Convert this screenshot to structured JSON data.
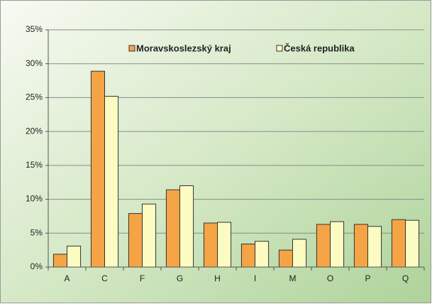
{
  "chart_data": {
    "type": "bar",
    "categories": [
      "A",
      "C",
      "F",
      "G",
      "H",
      "I",
      "M",
      "O",
      "P",
      "Q"
    ],
    "series": [
      {
        "name": "Moravskoslezský kraj",
        "color": "#f5a445",
        "values": [
          1.9,
          28.9,
          7.9,
          11.4,
          6.5,
          3.4,
          2.5,
          6.3,
          6.3,
          7.0
        ]
      },
      {
        "name": "Česká republika",
        "color": "#fbfbc2",
        "values": [
          3.1,
          25.2,
          9.3,
          12.0,
          6.6,
          3.8,
          4.1,
          6.7,
          6.0,
          6.9
        ]
      }
    ],
    "ylim": [
      0,
      35
    ],
    "yticks": [
      {
        "value": 0,
        "label": "0%"
      },
      {
        "value": 5,
        "label": "5%"
      },
      {
        "value": 10,
        "label": "10%"
      },
      {
        "value": 15,
        "label": "15%"
      },
      {
        "value": 20,
        "label": "20%"
      },
      {
        "value": 25,
        "label": "25%"
      },
      {
        "value": 30,
        "label": "30%"
      },
      {
        "value": 35,
        "label": "35%"
      }
    ],
    "grid": true,
    "legend": "top"
  }
}
